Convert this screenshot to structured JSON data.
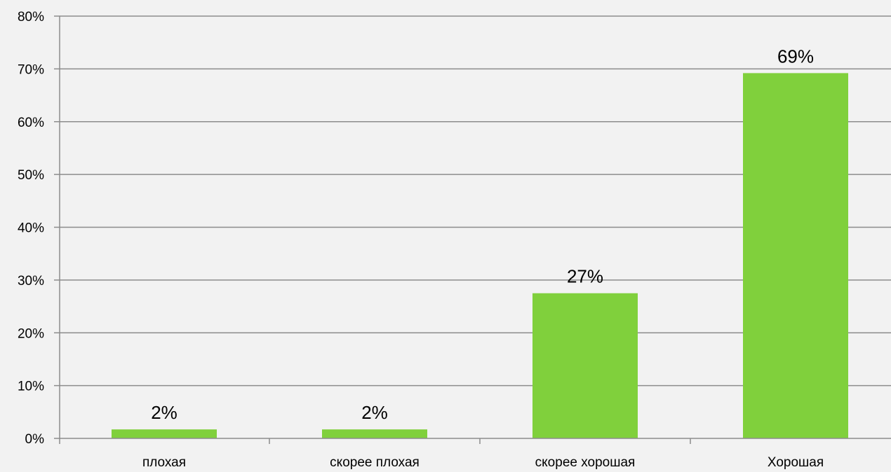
{
  "chart_data": {
    "type": "bar",
    "categories": [
      "плохая",
      "скорее плохая",
      "скорее хорошая",
      "Хорошая"
    ],
    "values": [
      1.7,
      1.7,
      27.5,
      69.2
    ],
    "data_labels": [
      "2%",
      "2%",
      "27%",
      "69%"
    ],
    "y_ticks": [
      "0%",
      "10%",
      "20%",
      "30%",
      "40%",
      "50%",
      "60%",
      "70%",
      "80%"
    ],
    "ylim": [
      0,
      80
    ],
    "grid": true,
    "legend": "none",
    "bar_color": "#80d03c",
    "grid_color": "#8c8c8c",
    "axis_color": "#8c8c8c",
    "background": "#f2f2f2"
  }
}
